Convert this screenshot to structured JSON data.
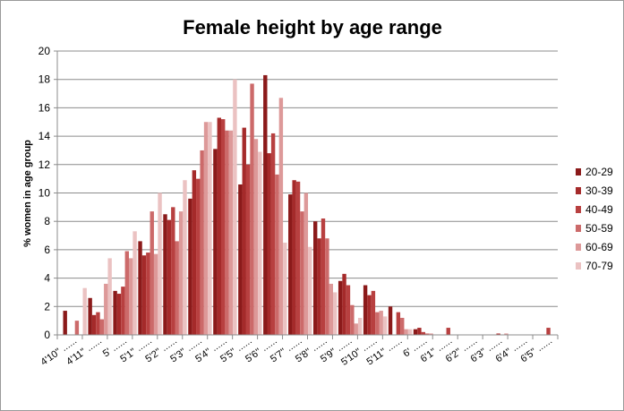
{
  "chart_data": {
    "type": "bar",
    "title": "Female height by age range",
    "xlabel": "",
    "ylabel": "% women in age group",
    "ylim": [
      0,
      20
    ],
    "yticks": [
      0,
      2,
      4,
      6,
      8,
      10,
      12,
      14,
      16,
      18,
      20
    ],
    "grid": true,
    "legend_position": "right",
    "categories": [
      "4'10'' ......",
      "4'11'' ......",
      "5' ......",
      "5'1'' ......",
      "5'2'' ......",
      "5'3'' ......",
      "5'4'' ......",
      "5'5'' ......",
      "5'6'' ......",
      "5'7'' ......",
      "5'8'' ......",
      "5'9'' ......",
      "5'10'' ......",
      "5'11'' ......",
      "6' ......",
      "6'1'' ......",
      "6'2'' ......",
      "6'3'' ......",
      "6'4'' ......",
      "6'5'' ......"
    ],
    "series": [
      {
        "name": "20-29",
        "color": "#8b1a1a",
        "values": [
          1.7,
          2.6,
          3.1,
          6.6,
          8.5,
          9.6,
          13.1,
          10.6,
          18.3,
          9.9,
          8.0,
          3.8,
          3.5,
          2.0,
          0.4,
          0.0,
          0.0,
          0.0,
          0.0,
          0.0
        ]
      },
      {
        "name": "30-39",
        "color": "#a52a2a",
        "values": [
          0.0,
          1.4,
          2.9,
          5.6,
          8.1,
          11.6,
          15.3,
          14.6,
          12.8,
          10.9,
          6.8,
          4.3,
          2.8,
          0.0,
          0.5,
          0.0,
          0.0,
          0.0,
          0.0,
          0.0
        ]
      },
      {
        "name": "40-49",
        "color": "#b84040",
        "values": [
          0.0,
          1.6,
          3.4,
          5.8,
          9.0,
          11.0,
          15.2,
          12.0,
          14.2,
          10.8,
          8.2,
          3.5,
          3.1,
          1.6,
          0.2,
          0.5,
          0.0,
          0.1,
          0.0,
          0.5
        ]
      },
      {
        "name": "50-59",
        "color": "#cc6a6a",
        "values": [
          1.0,
          1.1,
          5.9,
          8.7,
          6.6,
          13.0,
          14.4,
          17.7,
          11.3,
          8.7,
          6.8,
          2.1,
          1.6,
          1.2,
          0.1,
          0.0,
          0.0,
          0.0,
          0.0,
          0.0
        ]
      },
      {
        "name": "60-69",
        "color": "#dd9999",
        "values": [
          0.0,
          3.6,
          5.4,
          5.7,
          8.7,
          15.0,
          14.4,
          13.8,
          16.7,
          10.0,
          3.6,
          0.8,
          1.7,
          0.4,
          0.1,
          0.0,
          0.0,
          0.1,
          0.0,
          0.0
        ]
      },
      {
        "name": "70-79",
        "color": "#ebc2c2",
        "values": [
          3.3,
          5.4,
          7.3,
          10.0,
          10.9,
          15.0,
          18.0,
          12.9,
          6.5,
          6.2,
          3.0,
          1.2,
          1.3,
          0.4,
          0.0,
          0.0,
          0.0,
          0.0,
          0.0,
          0.0
        ]
      }
    ]
  }
}
